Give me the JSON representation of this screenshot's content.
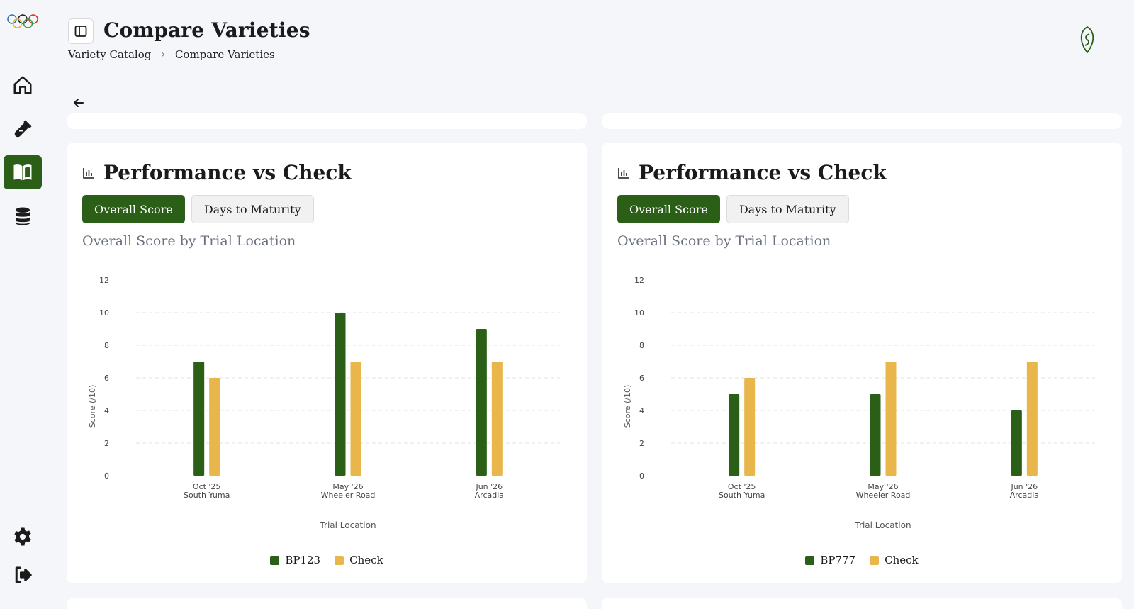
{
  "header": {
    "title": "Compare Varieties",
    "breadcrumb": [
      "Variety Catalog",
      "Compare Varieties"
    ]
  },
  "sidebar": {
    "items": [
      {
        "icon": "home-icon"
      },
      {
        "icon": "test-tube-icon"
      },
      {
        "icon": "book-open-icon",
        "active": true
      },
      {
        "icon": "database-icon"
      },
      {
        "icon": "gear-icon"
      },
      {
        "icon": "sign-out-icon"
      }
    ]
  },
  "colors": {
    "accent": "#2b5e16",
    "check": "#e8b64a",
    "muted": "#6b7280"
  },
  "cards": [
    {
      "title": "Performance vs Check",
      "tabs": [
        "Overall Score",
        "Days to Maturity"
      ],
      "subtitle": "Overall Score by Trial Location",
      "chart_data": {
        "type": "bar",
        "categories": [
          [
            "Oct '25",
            "South Yuma"
          ],
          [
            "May '26",
            "Wheeler Road"
          ],
          [
            "Jun '26",
            "Arcadia"
          ]
        ],
        "series": [
          {
            "name": "BP123",
            "values": [
              7,
              10,
              9
            ],
            "color": "#2b5e16"
          },
          {
            "name": "Check",
            "values": [
              6,
              7,
              7
            ],
            "color": "#e8b64a"
          }
        ],
        "xlabel": "Trial Location",
        "ylabel": "Score (/10)",
        "ylim": [
          0,
          12
        ],
        "yticks": [
          0,
          2,
          4,
          6,
          8,
          10,
          12
        ],
        "grid": true,
        "legend": "bottom"
      }
    },
    {
      "title": "Performance vs Check",
      "tabs": [
        "Overall Score",
        "Days to Maturity"
      ],
      "subtitle": "Overall Score by Trial Location",
      "chart_data": {
        "type": "bar",
        "categories": [
          [
            "Oct '25",
            "South Yuma"
          ],
          [
            "May '26",
            "Wheeler Road"
          ],
          [
            "Jun '26",
            "Arcadia"
          ]
        ],
        "series": [
          {
            "name": "BP777",
            "values": [
              5,
              5,
              4
            ],
            "color": "#2b5e16"
          },
          {
            "name": "Check",
            "values": [
              6,
              7,
              7
            ],
            "color": "#e8b64a"
          }
        ],
        "xlabel": "Trial Location",
        "ylabel": "Score (/10)",
        "ylim": [
          0,
          12
        ],
        "yticks": [
          0,
          2,
          4,
          6,
          8,
          10,
          12
        ],
        "grid": true,
        "legend": "bottom"
      }
    }
  ]
}
